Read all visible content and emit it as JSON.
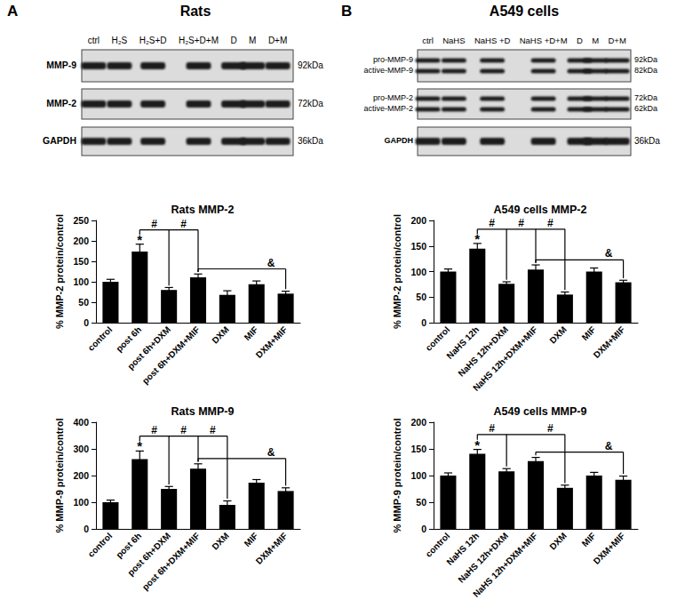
{
  "panels": [
    {
      "label": "A",
      "title": "Rats",
      "lanes": [
        "ctrl",
        "H₂S",
        "H₂S+D",
        "H₂S+D+M",
        "D",
        "M",
        "D+M"
      ],
      "blots": [
        {
          "names": [
            "MMP-9"
          ],
          "sizes": [
            "92kDa"
          ]
        },
        {
          "names": [
            "MMP-2"
          ],
          "sizes": [
            "72kDa"
          ]
        },
        {
          "names": [
            "GAPDH"
          ],
          "sizes": [
            "36kDa"
          ]
        }
      ]
    },
    {
      "label": "B",
      "title": "A549 cells",
      "lanes": [
        "ctrl",
        "NaHS",
        "NaHS +D",
        "NaHS +D+M",
        "D",
        "M",
        "D+M"
      ],
      "blots": [
        {
          "names": [
            "pro-MMP-9",
            "active-MMP-9"
          ],
          "sizes": [
            "92kDa",
            "82kDa"
          ]
        },
        {
          "names": [
            "pro-MMP-2",
            "active-MMP-2"
          ],
          "sizes": [
            "72kDa",
            "62kDa"
          ]
        },
        {
          "names": [
            "GAPDH"
          ],
          "sizes": [
            "36kDa"
          ]
        }
      ]
    }
  ],
  "chart_data": [
    {
      "type": "bar",
      "title": "Rats MMP-2",
      "ylabel": "% MMP-2 protein/control",
      "categories": [
        "control",
        "post 6h",
        "post 6h+DXM",
        "post 6h+DXM+MIF",
        "DXM",
        "MIF",
        "DXM+MIF"
      ],
      "values": [
        100,
        174,
        80,
        111,
        68,
        94,
        71
      ],
      "error": [
        6,
        18,
        6,
        8,
        10,
        8,
        6
      ],
      "color": "#000000",
      "ylim": [
        0,
        250
      ],
      "yticks": [
        0,
        50,
        100,
        150,
        200,
        250
      ],
      "grid": false,
      "annotations": [
        {
          "text": "*",
          "at": "post 6h"
        },
        {
          "text": "#",
          "from": "post 6h",
          "to": "post 6h+DXM"
        },
        {
          "text": "#",
          "from": "post 6h",
          "to": "post 6h+DXM+MIF"
        },
        {
          "text": "&",
          "from": "post 6h+DXM+MIF",
          "to": "DXM+MIF"
        }
      ]
    },
    {
      "type": "bar",
      "title": "Rats MMP-9",
      "ylabel": "% MMP-9 protein/control",
      "categories": [
        "control",
        "post 6h",
        "post 6h+DXM",
        "post 6h+DXM+MIF",
        "DXM",
        "MIF",
        "DXM+MIF"
      ],
      "values": [
        100,
        262,
        150,
        226,
        90,
        173,
        142
      ],
      "error": [
        8,
        30,
        9,
        18,
        15,
        12,
        12
      ],
      "color": "#000000",
      "ylim": [
        0,
        400
      ],
      "yticks": [
        0,
        100,
        200,
        300,
        400
      ],
      "grid": false,
      "annotations": [
        {
          "text": "*",
          "at": "post 6h"
        },
        {
          "text": "#",
          "from": "post 6h",
          "to": "post 6h+DXM"
        },
        {
          "text": "#",
          "from": "post 6h",
          "to": "post 6h+DXM+MIF"
        },
        {
          "text": "#",
          "from": "post 6h",
          "to": "DXM"
        },
        {
          "text": "&",
          "from": "post 6h+DXM+MIF",
          "to": "DXM+MIF"
        }
      ]
    },
    {
      "type": "bar",
      "title": "A549 cells MMP-2",
      "ylabel": "% MMP-2 protein/control",
      "categories": [
        "control",
        "NaHS 12h",
        "NaHS 12h+DXM",
        "NaHS 12h+DXM+MIF",
        "DXM",
        "MIF",
        "DXM+MIF"
      ],
      "values": [
        100,
        145,
        76,
        104,
        55,
        100,
        79
      ],
      "error": [
        5,
        10,
        4,
        9,
        5,
        7,
        4
      ],
      "color": "#000000",
      "ylim": [
        0,
        200
      ],
      "yticks": [
        0,
        50,
        100,
        150,
        200
      ],
      "grid": false,
      "annotations": [
        {
          "text": "*",
          "at": "NaHS 12h"
        },
        {
          "text": "#",
          "from": "NaHS 12h",
          "to": "NaHS 12h+DXM"
        },
        {
          "text": "#",
          "from": "NaHS 12h",
          "to": "NaHS 12h+DXM+MIF"
        },
        {
          "text": "#",
          "from": "NaHS 12h",
          "to": "DXM"
        },
        {
          "text": "&",
          "from": "NaHS 12h+DXM+MIF",
          "to": "DXM+MIF"
        }
      ]
    },
    {
      "type": "bar",
      "title": "A549 cells MMP-9",
      "ylabel": "% MMP-9 protein/control",
      "categories": [
        "control",
        "NaHS 12h",
        "NaHS 12h+DXM",
        "NaHS 12h+DXM+MIF",
        "DXM",
        "MIF",
        "DXM+MIF"
      ],
      "values": [
        100,
        141,
        108,
        127,
        77,
        100,
        92
      ],
      "error": [
        5,
        8,
        5,
        7,
        5,
        6,
        7
      ],
      "color": "#000000",
      "ylim": [
        0,
        200
      ],
      "yticks": [
        0,
        50,
        100,
        150,
        200
      ],
      "grid": false,
      "annotations": [
        {
          "text": "*",
          "at": "NaHS 12h"
        },
        {
          "text": "#",
          "from": "NaHS 12h",
          "to": "NaHS 12h+DXM"
        },
        {
          "text": "#",
          "from": "NaHS 12h",
          "to": "DXM"
        },
        {
          "text": "&",
          "from": "NaHS 12h+DXM+MIF",
          "to": "DXM+MIF"
        }
      ]
    }
  ]
}
